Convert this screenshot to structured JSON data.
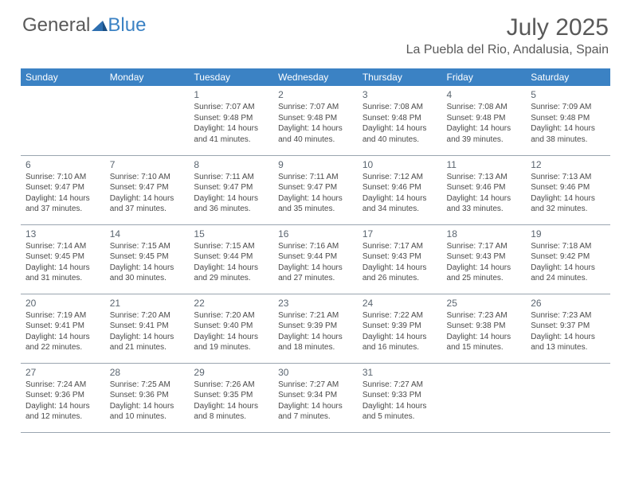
{
  "logo": {
    "text1": "General",
    "text2": "Blue"
  },
  "title": "July 2025",
  "location": "La Puebla del Rio, Andalusia, Spain",
  "header_bg": "#3b82c4",
  "header_fg": "#ffffff",
  "text_color": "#4a4a4a",
  "border_color": "#9aa5b0",
  "daynames": [
    "Sunday",
    "Monday",
    "Tuesday",
    "Wednesday",
    "Thursday",
    "Friday",
    "Saturday"
  ],
  "weeks": [
    [
      null,
      null,
      {
        "n": "1",
        "sr": "Sunrise: 7:07 AM",
        "ss": "Sunset: 9:48 PM",
        "d1": "Daylight: 14 hours",
        "d2": "and 41 minutes."
      },
      {
        "n": "2",
        "sr": "Sunrise: 7:07 AM",
        "ss": "Sunset: 9:48 PM",
        "d1": "Daylight: 14 hours",
        "d2": "and 40 minutes."
      },
      {
        "n": "3",
        "sr": "Sunrise: 7:08 AM",
        "ss": "Sunset: 9:48 PM",
        "d1": "Daylight: 14 hours",
        "d2": "and 40 minutes."
      },
      {
        "n": "4",
        "sr": "Sunrise: 7:08 AM",
        "ss": "Sunset: 9:48 PM",
        "d1": "Daylight: 14 hours",
        "d2": "and 39 minutes."
      },
      {
        "n": "5",
        "sr": "Sunrise: 7:09 AM",
        "ss": "Sunset: 9:48 PM",
        "d1": "Daylight: 14 hours",
        "d2": "and 38 minutes."
      }
    ],
    [
      {
        "n": "6",
        "sr": "Sunrise: 7:10 AM",
        "ss": "Sunset: 9:47 PM",
        "d1": "Daylight: 14 hours",
        "d2": "and 37 minutes."
      },
      {
        "n": "7",
        "sr": "Sunrise: 7:10 AM",
        "ss": "Sunset: 9:47 PM",
        "d1": "Daylight: 14 hours",
        "d2": "and 37 minutes."
      },
      {
        "n": "8",
        "sr": "Sunrise: 7:11 AM",
        "ss": "Sunset: 9:47 PM",
        "d1": "Daylight: 14 hours",
        "d2": "and 36 minutes."
      },
      {
        "n": "9",
        "sr": "Sunrise: 7:11 AM",
        "ss": "Sunset: 9:47 PM",
        "d1": "Daylight: 14 hours",
        "d2": "and 35 minutes."
      },
      {
        "n": "10",
        "sr": "Sunrise: 7:12 AM",
        "ss": "Sunset: 9:46 PM",
        "d1": "Daylight: 14 hours",
        "d2": "and 34 minutes."
      },
      {
        "n": "11",
        "sr": "Sunrise: 7:13 AM",
        "ss": "Sunset: 9:46 PM",
        "d1": "Daylight: 14 hours",
        "d2": "and 33 minutes."
      },
      {
        "n": "12",
        "sr": "Sunrise: 7:13 AM",
        "ss": "Sunset: 9:46 PM",
        "d1": "Daylight: 14 hours",
        "d2": "and 32 minutes."
      }
    ],
    [
      {
        "n": "13",
        "sr": "Sunrise: 7:14 AM",
        "ss": "Sunset: 9:45 PM",
        "d1": "Daylight: 14 hours",
        "d2": "and 31 minutes."
      },
      {
        "n": "14",
        "sr": "Sunrise: 7:15 AM",
        "ss": "Sunset: 9:45 PM",
        "d1": "Daylight: 14 hours",
        "d2": "and 30 minutes."
      },
      {
        "n": "15",
        "sr": "Sunrise: 7:15 AM",
        "ss": "Sunset: 9:44 PM",
        "d1": "Daylight: 14 hours",
        "d2": "and 29 minutes."
      },
      {
        "n": "16",
        "sr": "Sunrise: 7:16 AM",
        "ss": "Sunset: 9:44 PM",
        "d1": "Daylight: 14 hours",
        "d2": "and 27 minutes."
      },
      {
        "n": "17",
        "sr": "Sunrise: 7:17 AM",
        "ss": "Sunset: 9:43 PM",
        "d1": "Daylight: 14 hours",
        "d2": "and 26 minutes."
      },
      {
        "n": "18",
        "sr": "Sunrise: 7:17 AM",
        "ss": "Sunset: 9:43 PM",
        "d1": "Daylight: 14 hours",
        "d2": "and 25 minutes."
      },
      {
        "n": "19",
        "sr": "Sunrise: 7:18 AM",
        "ss": "Sunset: 9:42 PM",
        "d1": "Daylight: 14 hours",
        "d2": "and 24 minutes."
      }
    ],
    [
      {
        "n": "20",
        "sr": "Sunrise: 7:19 AM",
        "ss": "Sunset: 9:41 PM",
        "d1": "Daylight: 14 hours",
        "d2": "and 22 minutes."
      },
      {
        "n": "21",
        "sr": "Sunrise: 7:20 AM",
        "ss": "Sunset: 9:41 PM",
        "d1": "Daylight: 14 hours",
        "d2": "and 21 minutes."
      },
      {
        "n": "22",
        "sr": "Sunrise: 7:20 AM",
        "ss": "Sunset: 9:40 PM",
        "d1": "Daylight: 14 hours",
        "d2": "and 19 minutes."
      },
      {
        "n": "23",
        "sr": "Sunrise: 7:21 AM",
        "ss": "Sunset: 9:39 PM",
        "d1": "Daylight: 14 hours",
        "d2": "and 18 minutes."
      },
      {
        "n": "24",
        "sr": "Sunrise: 7:22 AM",
        "ss": "Sunset: 9:39 PM",
        "d1": "Daylight: 14 hours",
        "d2": "and 16 minutes."
      },
      {
        "n": "25",
        "sr": "Sunrise: 7:23 AM",
        "ss": "Sunset: 9:38 PM",
        "d1": "Daylight: 14 hours",
        "d2": "and 15 minutes."
      },
      {
        "n": "26",
        "sr": "Sunrise: 7:23 AM",
        "ss": "Sunset: 9:37 PM",
        "d1": "Daylight: 14 hours",
        "d2": "and 13 minutes."
      }
    ],
    [
      {
        "n": "27",
        "sr": "Sunrise: 7:24 AM",
        "ss": "Sunset: 9:36 PM",
        "d1": "Daylight: 14 hours",
        "d2": "and 12 minutes."
      },
      {
        "n": "28",
        "sr": "Sunrise: 7:25 AM",
        "ss": "Sunset: 9:36 PM",
        "d1": "Daylight: 14 hours",
        "d2": "and 10 minutes."
      },
      {
        "n": "29",
        "sr": "Sunrise: 7:26 AM",
        "ss": "Sunset: 9:35 PM",
        "d1": "Daylight: 14 hours",
        "d2": "and 8 minutes."
      },
      {
        "n": "30",
        "sr": "Sunrise: 7:27 AM",
        "ss": "Sunset: 9:34 PM",
        "d1": "Daylight: 14 hours",
        "d2": "and 7 minutes."
      },
      {
        "n": "31",
        "sr": "Sunrise: 7:27 AM",
        "ss": "Sunset: 9:33 PM",
        "d1": "Daylight: 14 hours",
        "d2": "and 5 minutes."
      },
      null,
      null
    ]
  ]
}
